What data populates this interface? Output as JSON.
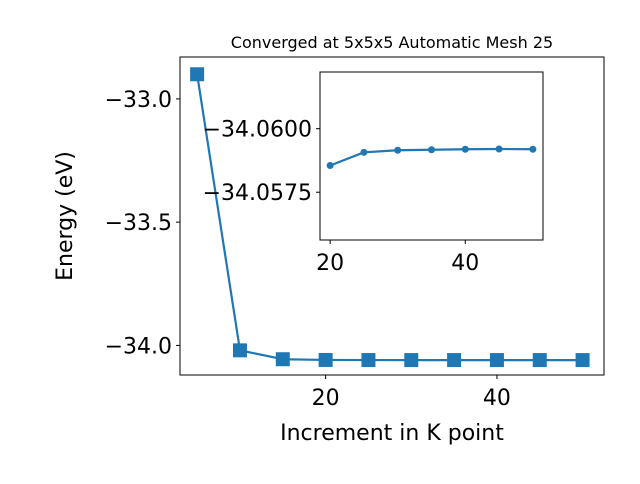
{
  "chart_data": [
    {
      "type": "line",
      "title": "Converged at 5x5x5 Automatic Mesh 25",
      "xlabel": "Increment in K point",
      "ylabel": "Energy (eV)",
      "xlim": [
        3,
        52.5
      ],
      "ylim": [
        -34.12,
        -32.83
      ],
      "xticks": [
        20,
        40
      ],
      "xtick_labels": [
        "20",
        "40"
      ],
      "yticks": [
        -33.0,
        -33.5,
        -34.0
      ],
      "ytick_labels": [
        "−33.0",
        "−33.5",
        "−34.0"
      ],
      "marker": "square",
      "series": [
        {
          "x": [
            5,
            10,
            15,
            20,
            25,
            30,
            35,
            40,
            45,
            50
          ],
          "y": [
            -32.9,
            -34.02,
            -34.056,
            -34.059,
            -34.0594,
            -34.0595,
            -34.0595,
            -34.0595,
            -34.0595,
            -34.0595
          ],
          "color": "#1f77b4"
        }
      ]
    },
    {
      "type": "line",
      "title": "",
      "xlabel": "",
      "ylabel": "",
      "xlim": [
        18.5,
        51.5
      ],
      "ylim": [
        -34.05562,
        -34.06223
      ],
      "xticks": [
        20,
        40
      ],
      "xtick_labels": [
        "20",
        "40"
      ],
      "yticks": [
        -34.06,
        -34.0575
      ],
      "ytick_labels": [
        "−34.0600",
        "−34.0575"
      ],
      "marker": "circle",
      "series": [
        {
          "x": [
            20,
            25,
            30,
            35,
            40,
            45,
            50
          ],
          "y": [
            -34.05855,
            -34.05907,
            -34.05915,
            -34.05917,
            -34.05919,
            -34.0592,
            -34.05919
          ],
          "color": "#1f77b4"
        }
      ]
    }
  ]
}
